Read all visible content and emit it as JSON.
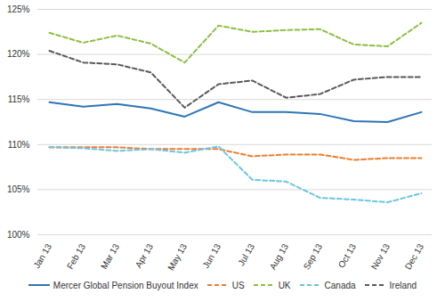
{
  "chart_data": {
    "type": "line",
    "categories": [
      "Jan 13",
      "Feb 13",
      "Mar 13",
      "Apr 13",
      "May 13",
      "Jun 13",
      "Jul 13",
      "Aug 13",
      "Sep 13",
      "Oct 13",
      "Nov 13",
      "Dec 13"
    ],
    "series": [
      {
        "name": "Mercer Global Pension Buyout Index",
        "color": "#2e75b6",
        "line_style": "solid",
        "values": [
          114.7,
          114.2,
          114.5,
          114.0,
          113.1,
          114.7,
          113.6,
          113.6,
          113.4,
          112.6,
          112.5,
          113.6
        ]
      },
      {
        "name": "US",
        "color": "#ed7d31",
        "line_style": "dashed",
        "values": [
          109.7,
          109.7,
          109.7,
          109.5,
          109.5,
          109.5,
          108.7,
          108.9,
          108.9,
          108.3,
          108.5,
          108.5
        ]
      },
      {
        "name": "UK",
        "color": "#8cbf45",
        "line_style": "dashed",
        "values": [
          122.4,
          121.3,
          122.1,
          121.2,
          119.1,
          123.2,
          122.5,
          122.7,
          122.8,
          121.1,
          120.9,
          123.5
        ]
      },
      {
        "name": "Canada",
        "color": "#6cc5e3",
        "line_style": "dashed",
        "values": [
          109.7,
          109.6,
          109.3,
          109.5,
          109.1,
          109.8,
          106.1,
          105.9,
          104.1,
          103.9,
          103.6,
          104.6
        ]
      },
      {
        "name": "Ireland",
        "color": "#595959",
        "line_style": "dashed",
        "values": [
          120.4,
          119.1,
          118.9,
          118.0,
          114.1,
          116.7,
          117.1,
          115.2,
          115.6,
          117.2,
          117.5,
          117.5
        ]
      }
    ],
    "ylim": [
      100,
      125
    ],
    "yticks": [
      {
        "value": 100,
        "label": "100%"
      },
      {
        "value": 105,
        "label": "105%"
      },
      {
        "value": 110,
        "label": "110%"
      },
      {
        "value": 115,
        "label": "115%"
      },
      {
        "value": 120,
        "label": "120%"
      },
      {
        "value": 125,
        "label": "125%"
      }
    ],
    "grid": true,
    "legend": "bottom"
  }
}
